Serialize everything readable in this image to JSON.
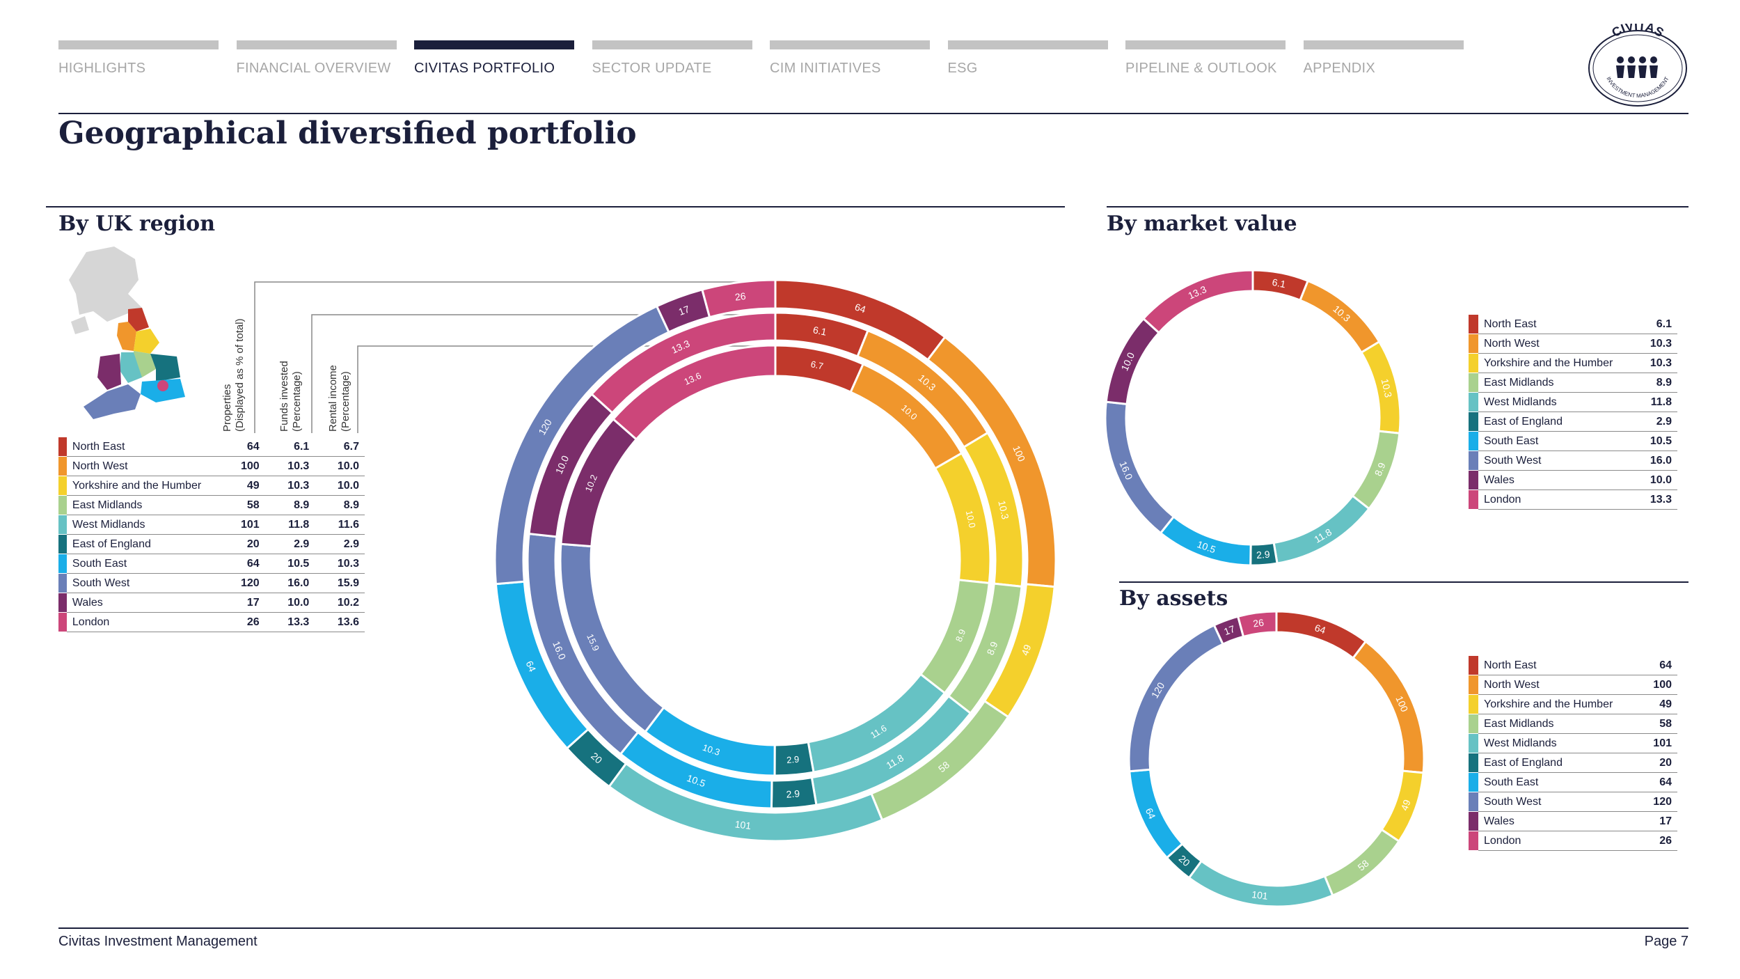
{
  "nav": [
    {
      "label": "HIGHLIGHTS",
      "active": false
    },
    {
      "label": "FINANCIAL OVERVIEW",
      "active": false
    },
    {
      "label": "CIVITAS PORTFOLIO",
      "active": true
    },
    {
      "label": "SECTOR UPDATE",
      "active": false
    },
    {
      "label": "CIM INITIATIVES",
      "active": false
    },
    {
      "label": "ESG",
      "active": false
    },
    {
      "label": "PIPELINE & OUTLOOK",
      "active": false
    },
    {
      "label": "APPENDIX",
      "active": false
    }
  ],
  "logo": {
    "top_text": "CIVITAS",
    "ring_text": "INVESTMENT MANAGEMENT"
  },
  "page_title": "Geographical diversified portfolio",
  "section_uk": "By UK region",
  "section_market": "By market value",
  "section_assets": "By assets",
  "col_headers": {
    "properties_line1": "Properties",
    "properties_line2": "(Displayed as % of total)",
    "funds_line1": "Funds invested",
    "funds_line2": "(Percentage)",
    "rental_line1": "Rental income",
    "rental_line2": "(Percentage)"
  },
  "footer": {
    "company": "Civitas Investment Management",
    "page": "Page 7"
  },
  "colors": {
    "North East": "#c0392b",
    "North West": "#f0962c",
    "Yorkshire and the Humber": "#f4d02c",
    "East Midlands": "#a9d18e",
    "West Midlands": "#66c2c4",
    "East of England": "#16727e",
    "South East": "#1aaee8",
    "South West": "#6a7fb8",
    "Wales": "#7b2d6a",
    "London": "#cc467a"
  },
  "chart_data": [
    {
      "type": "table",
      "title": "By UK region",
      "columns": [
        "Region",
        "Properties (Displayed as % of total)",
        "Funds invested (Percentage)",
        "Rental income (Percentage)"
      ],
      "rows": [
        [
          "North East",
          "64",
          "6.1",
          "6.7"
        ],
        [
          "North West",
          "100",
          "10.3",
          "10.0"
        ],
        [
          "Yorkshire and the Humber",
          "49",
          "10.3",
          "10.0"
        ],
        [
          "East Midlands",
          "58",
          "8.9",
          "8.9"
        ],
        [
          "West Midlands",
          "101",
          "11.8",
          "11.6"
        ],
        [
          "East of England",
          "20",
          "2.9",
          "2.9"
        ],
        [
          "South East",
          "64",
          "10.5",
          "10.3"
        ],
        [
          "South West",
          "120",
          "16.0",
          "15.9"
        ],
        [
          "Wales",
          "17",
          "10.0",
          "10.2"
        ],
        [
          "London",
          "26",
          "13.3",
          "13.6"
        ]
      ]
    },
    {
      "type": "pie",
      "variant": "multi-ring donut",
      "categories": [
        "North East",
        "North West",
        "Yorkshire and the Humber",
        "East Midlands",
        "West Midlands",
        "East of England",
        "South East",
        "South West",
        "Wales",
        "London"
      ],
      "series": [
        {
          "values": [
            64,
            100,
            49,
            58,
            101,
            20,
            64,
            120,
            17,
            26
          ]
        },
        {
          "values": [
            6.1,
            10.3,
            10.3,
            8.9,
            11.8,
            2.9,
            10.5,
            16.0,
            10.0,
            13.3
          ]
        },
        {
          "values": [
            6.7,
            10.0,
            10.0,
            8.9,
            11.6,
            2.9,
            10.3,
            15.9,
            10.2,
            13.6
          ]
        }
      ]
    },
    {
      "type": "pie",
      "variant": "donut",
      "title": "By market value",
      "categories": [
        "North East",
        "North West",
        "Yorkshire and the Humber",
        "East Midlands",
        "West Midlands",
        "East of England",
        "South East",
        "South West",
        "Wales",
        "London"
      ],
      "values": [
        6.1,
        10.3,
        10.3,
        8.9,
        11.8,
        2.9,
        10.5,
        16.0,
        10.0,
        13.3
      ],
      "labels": [
        "6.1",
        "10.3",
        "10.3",
        "8.9",
        "11.8",
        "2.9",
        "10.5",
        "16.0",
        "10.0",
        "13.3"
      ],
      "legend_position": "right"
    },
    {
      "type": "pie",
      "variant": "donut",
      "title": "By assets",
      "categories": [
        "North East",
        "North West",
        "Yorkshire and the Humber",
        "East Midlands",
        "West Midlands",
        "East of England",
        "South East",
        "South West",
        "Wales",
        "London"
      ],
      "values": [
        64,
        100,
        49,
        58,
        101,
        20,
        64,
        120,
        17,
        26
      ],
      "labels": [
        "64",
        "100",
        "49",
        "58",
        "101",
        "20",
        "64",
        "120",
        "17",
        "26"
      ],
      "legend_position": "right"
    }
  ]
}
